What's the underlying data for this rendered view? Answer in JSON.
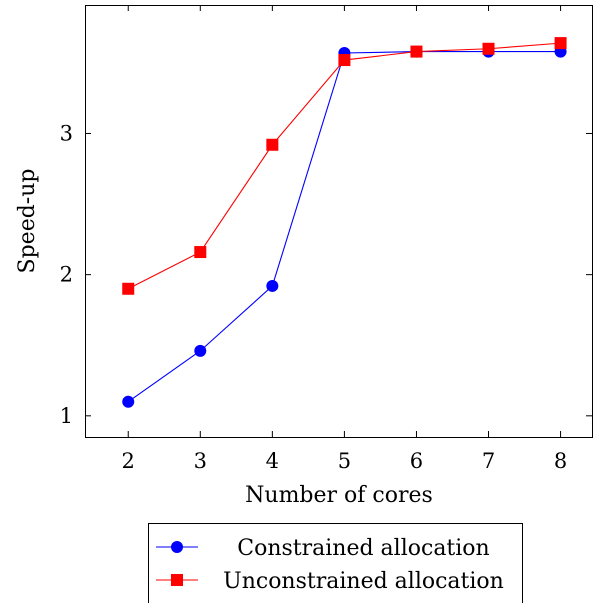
{
  "chart_data": {
    "type": "line",
    "title": "",
    "xlabel": "Number of cores",
    "ylabel": "Speed-up",
    "x": [
      2,
      3,
      4,
      5,
      6,
      7,
      8
    ],
    "xlim": [
      1.4,
      8.45
    ],
    "ylim": [
      0.85,
      3.91
    ],
    "xticks": [
      "2",
      "3",
      "4",
      "5",
      "6",
      "7",
      "8"
    ],
    "yticks": [
      "1",
      "2",
      "3"
    ],
    "grid": false,
    "legend_position": "bottom-center",
    "series": [
      {
        "name": "Constrained allocation",
        "values": [
          1.1,
          1.46,
          1.92,
          3.57,
          3.58,
          3.58,
          3.58
        ],
        "color": "#0000ff",
        "marker": "circle"
      },
      {
        "name": "Unconstrained allocation",
        "values": [
          1.9,
          2.16,
          2.92,
          3.52,
          3.58,
          3.6,
          3.64
        ],
        "color": "#ff0000",
        "marker": "square"
      }
    ]
  }
}
